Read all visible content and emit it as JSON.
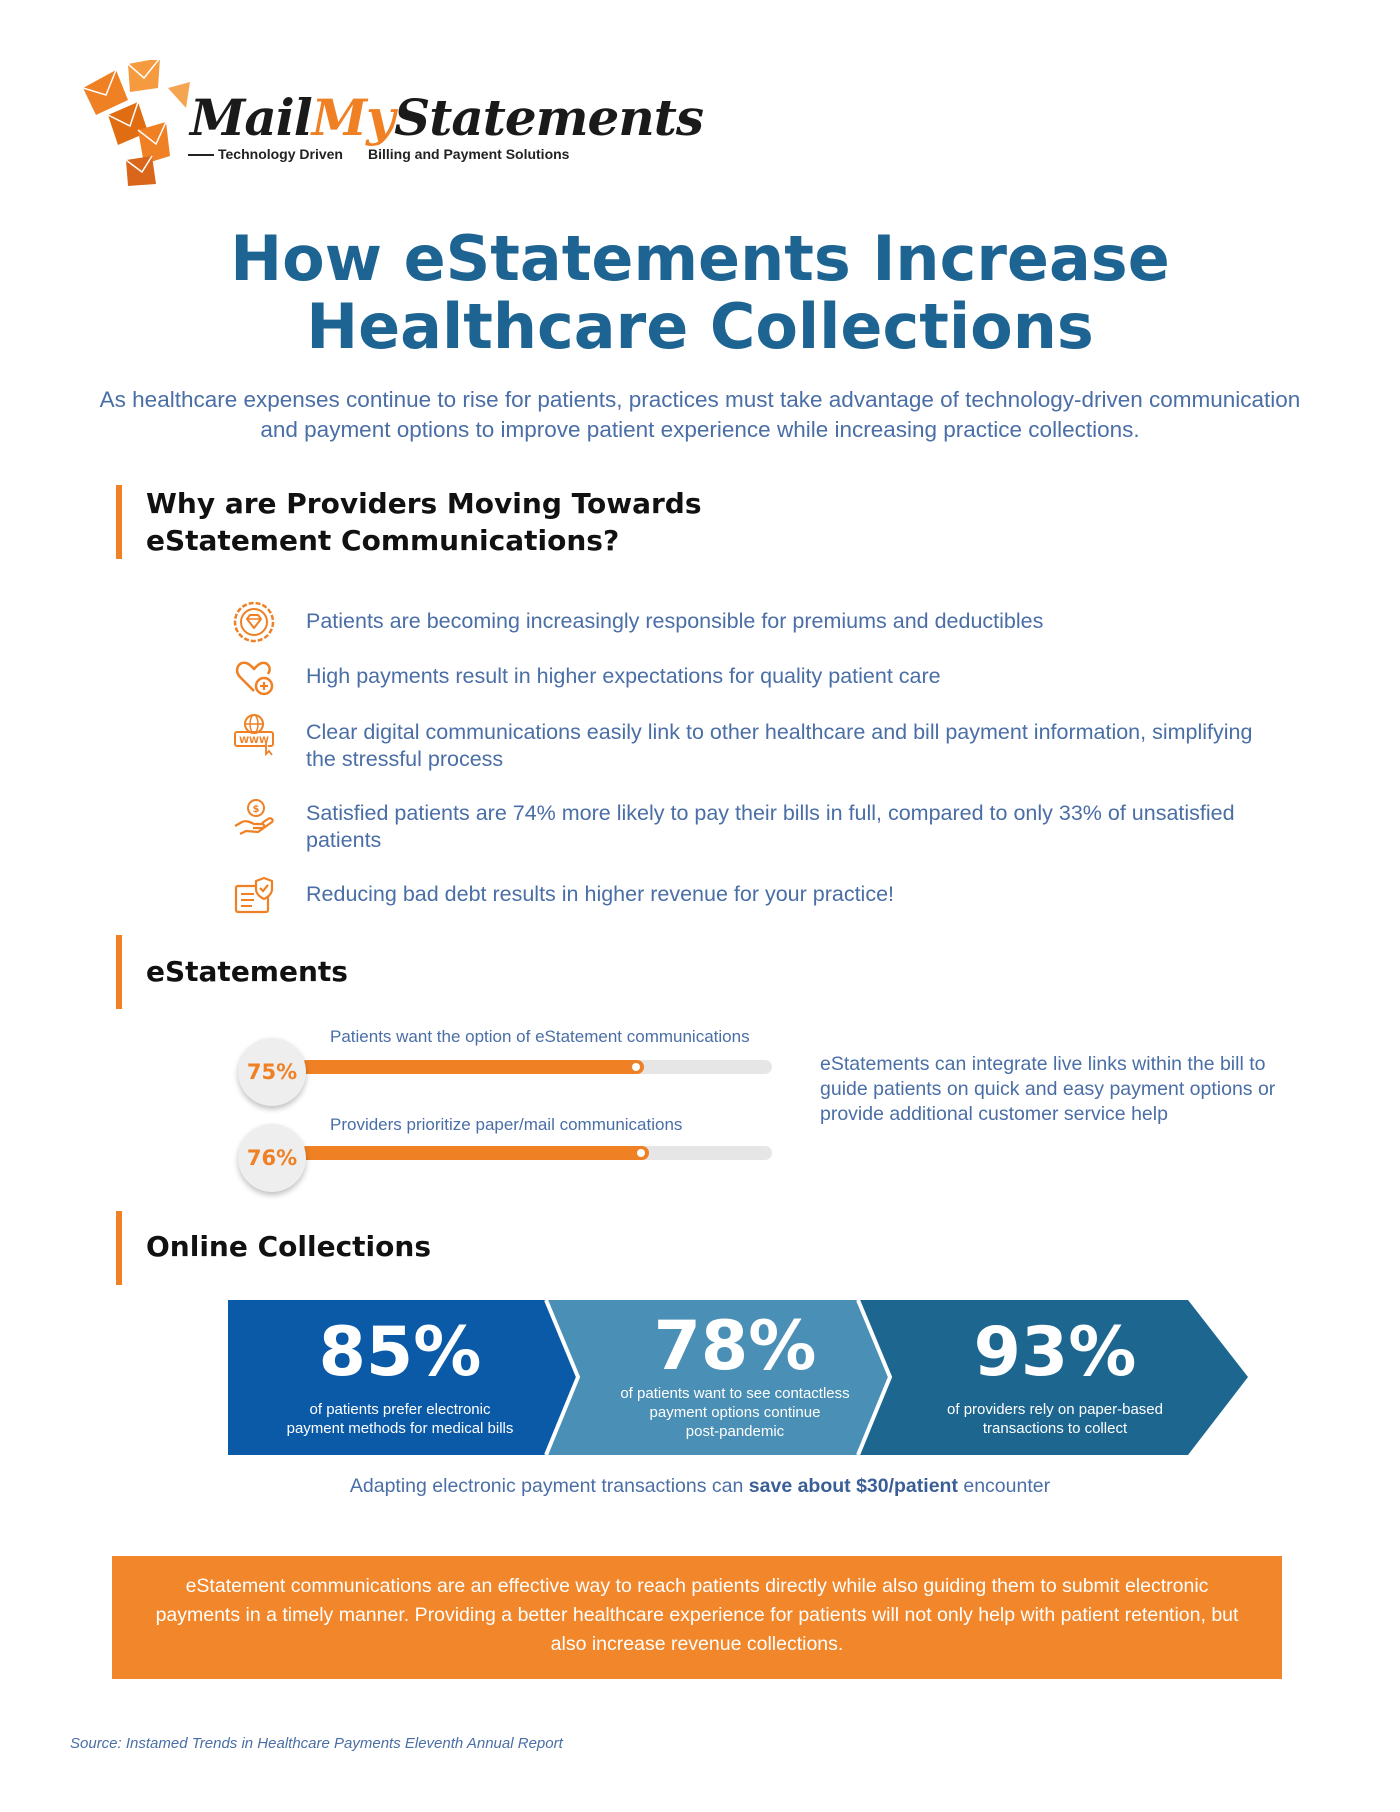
{
  "logo": {
    "name_part1": "Mail",
    "name_part2": "My",
    "name_part3": "Statements",
    "tagline_left": "Technology Driven",
    "tagline_right": "Billing and Payment Solutions"
  },
  "title": {
    "line1": "How eStatements Increase",
    "line2": "Healthcare Collections"
  },
  "intro": "As healthcare expenses continue to rise for patients, practices must take advantage of technology-driven communication and payment options to improve patient experience while increasing practice collections.",
  "section_why": {
    "title_line1": "Why are Providers Moving Towards",
    "title_line2": "eStatement Communications?",
    "items": [
      {
        "icon": "diamond-badge-icon",
        "text": "Patients are becoming increasingly responsible for premiums and deductibles"
      },
      {
        "icon": "heart-plus-icon",
        "text": "High payments result in higher expectations for quality patient care"
      },
      {
        "icon": "www-globe-icon",
        "text": "Clear digital communications easily link to other healthcare and bill payment information, simplifying the stressful process"
      },
      {
        "icon": "hand-coin-icon",
        "text": "Satisfied patients are 74% more likely to pay their bills in full, compared to only 33% of unsatisfied patients"
      },
      {
        "icon": "verified-document-icon",
        "text": "Reducing bad debt results in higher revenue for your practice!"
      }
    ]
  },
  "section_estatements": {
    "title": "eStatements",
    "bars": [
      {
        "percent_label": "75%",
        "value": 75,
        "label": "Patients want the option of eStatement communications"
      },
      {
        "percent_label": "76%",
        "value": 76,
        "label": "Providers prioritize paper/mail communications"
      }
    ],
    "side_text": "eStatements can integrate live links within the bill to guide patients on quick and easy payment options or provide additional customer service help"
  },
  "section_online": {
    "title": "Online Collections",
    "stats": [
      {
        "value": "85%",
        "desc_line1": "of patients prefer electronic",
        "desc_line2": "payment methods for medical bills",
        "desc_line3": "",
        "color": "#0b5aa8"
      },
      {
        "value": "78%",
        "desc_line1": "of patients want to see contactless",
        "desc_line2": "payment options continue",
        "desc_line3": "post-pandemic",
        "color": "#4a8fb5"
      },
      {
        "value": "93%",
        "desc_line1": "of providers rely on paper-based",
        "desc_line2": "transactions to collect",
        "desc_line3": "",
        "color": "#1d6690"
      }
    ],
    "save_prefix": "Adapting electronic payment transactions can ",
    "save_bold": "save about $30/patient",
    "save_suffix": " encounter"
  },
  "callout": "eStatement communications are an effective way to reach patients directly while also guiding them to submit electronic payments in a timely manner. Providing a better healthcare experience for patients will not only help with patient retention, but also increase revenue collections.",
  "source": "Source: Instamed Trends in Healthcare Payments Eleventh Annual Report",
  "colors": {
    "orange": "#ef8024",
    "title_blue": "#1e6492",
    "text_blue": "#4a6ea6"
  }
}
